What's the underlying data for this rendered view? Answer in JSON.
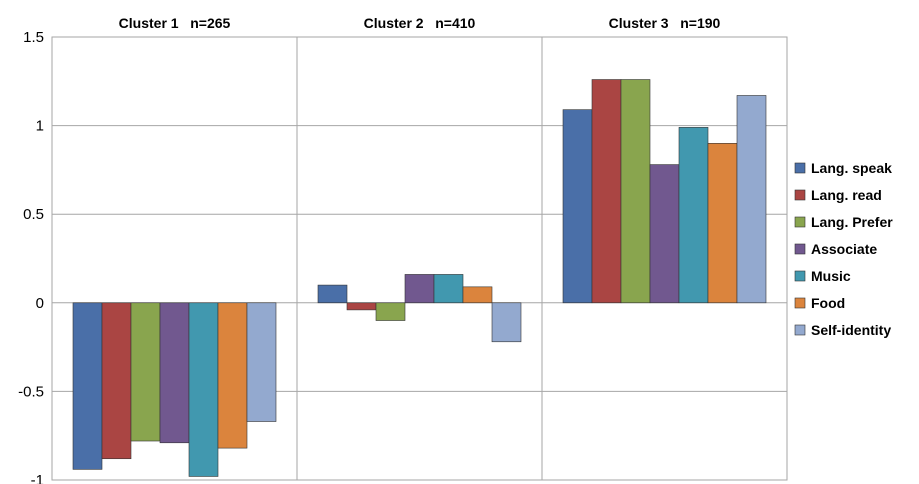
{
  "chart_data": {
    "type": "bar",
    "title": "",
    "xlabel": "",
    "ylabel": "",
    "ylim": [
      -1,
      1.5
    ],
    "yticks": [
      1.5,
      1,
      0.5,
      0,
      -0.5,
      -1
    ],
    "ytick_labels": [
      "1.5",
      "1",
      "0.5",
      "0",
      "-0.5",
      "-1"
    ],
    "grid": true,
    "legend_position": "right",
    "categories": [
      "Cluster 1   n=265",
      "Cluster 2   n=410",
      "Cluster 3   n=190"
    ],
    "series": [
      {
        "name": "Lang. speak",
        "color": "#4a6fa8",
        "values": [
          -0.94,
          0.1,
          1.09
        ]
      },
      {
        "name": "Lang. read",
        "color": "#aa4543",
        "values": [
          -0.88,
          -0.04,
          1.26
        ]
      },
      {
        "name": "Lang. Prefer",
        "color": "#89a54e",
        "values": [
          -0.78,
          -0.1,
          1.26
        ]
      },
      {
        "name": "Associate",
        "color": "#71588f",
        "values": [
          -0.79,
          0.16,
          0.78
        ]
      },
      {
        "name": "Music",
        "color": "#4198af",
        "values": [
          -0.98,
          0.16,
          0.99
        ]
      },
      {
        "name": "Food",
        "color": "#db843d",
        "values": [
          -0.82,
          0.09,
          0.9
        ]
      },
      {
        "name": "Self-identity",
        "color": "#93a9cf",
        "values": [
          -0.67,
          -0.22,
          1.17
        ]
      }
    ]
  }
}
